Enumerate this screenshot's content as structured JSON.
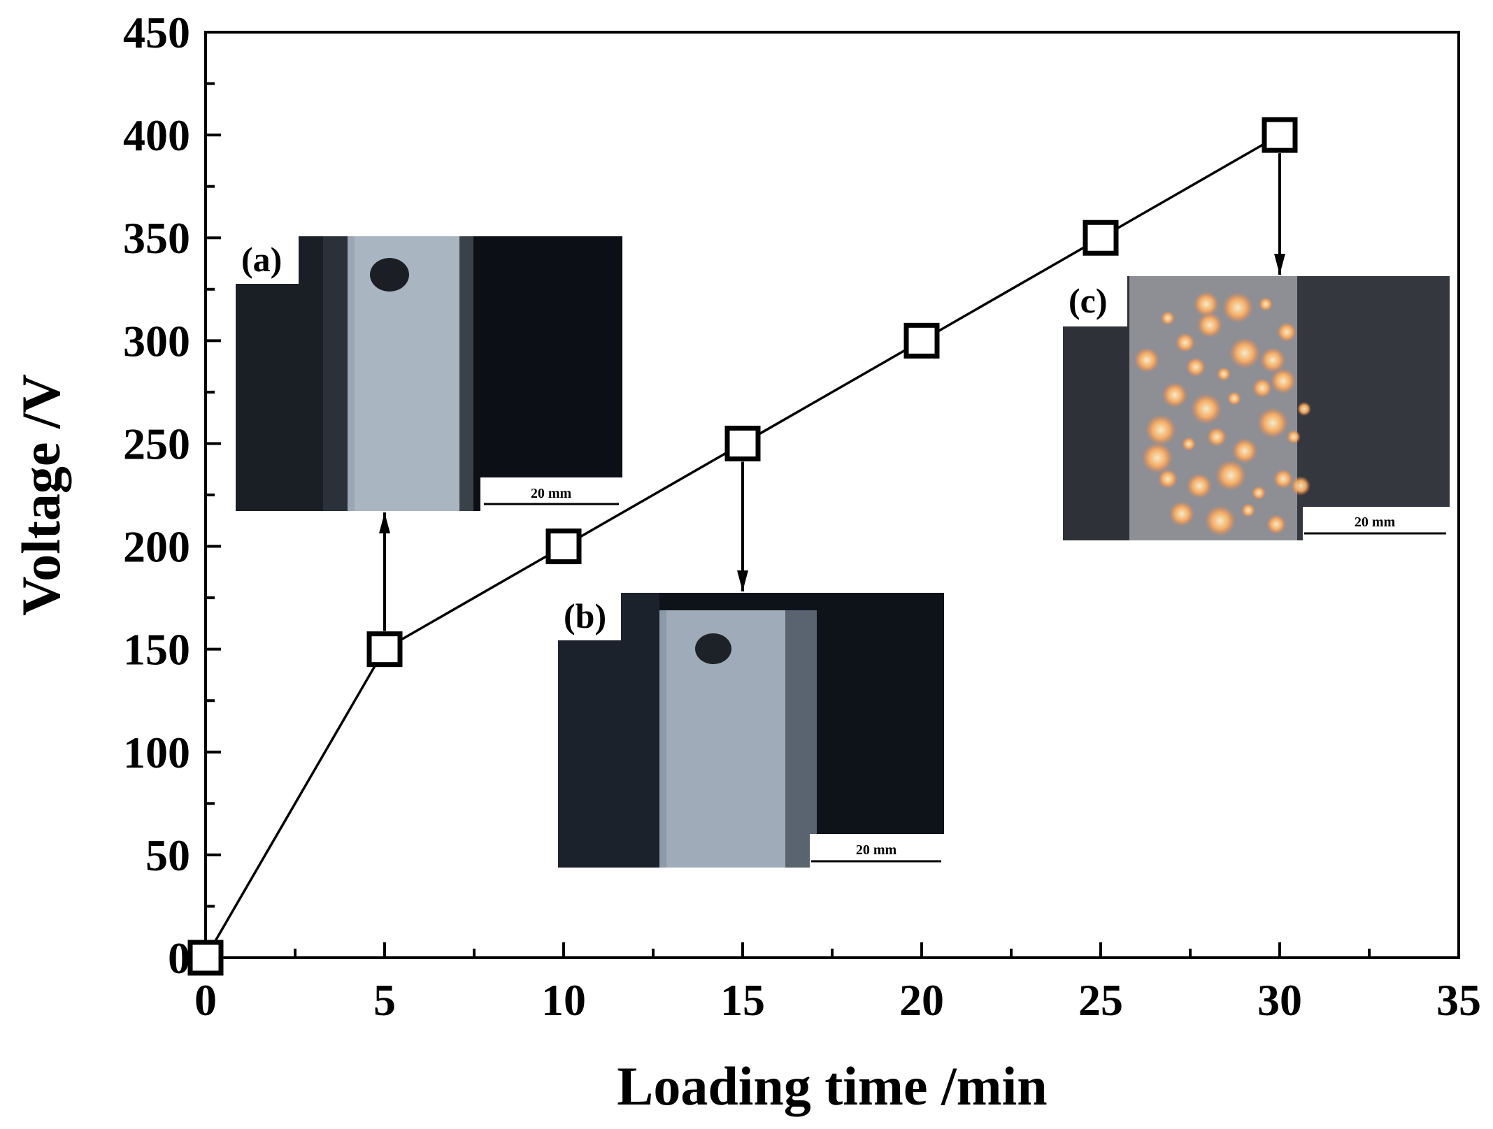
{
  "chart_data": {
    "type": "line",
    "xlabel": "Loading time /min",
    "ylabel": "Voltage /V",
    "xlim": [
      0,
      35
    ],
    "ylim": [
      0,
      450
    ],
    "xticks": [
      "0",
      "5",
      "10",
      "15",
      "20",
      "25",
      "30",
      "35"
    ],
    "yticks": [
      "0",
      "50",
      "100",
      "150",
      "200",
      "250",
      "300",
      "350",
      "400",
      "450"
    ],
    "grid": false,
    "marker": "open-square",
    "series": [
      {
        "x": [
          0,
          5,
          10,
          15,
          20,
          25,
          30
        ],
        "y": [
          0,
          150,
          200,
          250,
          300,
          350,
          400
        ]
      }
    ],
    "insets": [
      {
        "tag": "(a)",
        "scale_bar": "20 mm",
        "points_to": {
          "x": 5,
          "y": 150
        }
      },
      {
        "tag": "(b)",
        "scale_bar": "20 mm",
        "points_to": {
          "x": 15,
          "y": 250
        }
      },
      {
        "tag": "(c)",
        "scale_bar": "20 mm",
        "points_to": {
          "x": 30,
          "y": 400
        }
      }
    ]
  }
}
